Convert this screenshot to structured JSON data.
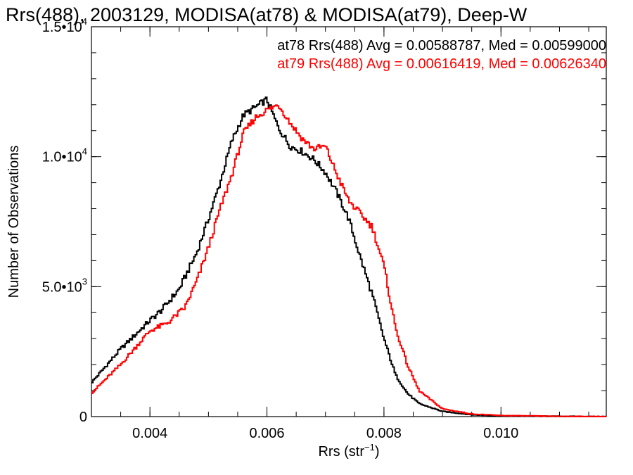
{
  "chart_data": {
    "type": "line",
    "title": "Rrs(488), 2003129, MODISA(at78) & MODISA(at79), Deep-W",
    "xlabel": "Rrs (str",
    "xlabel_sup": "−1",
    "xlabel_end": ")",
    "ylabel": "Number of Observations",
    "xlim": [
      0.003,
      0.0118
    ],
    "ylim": [
      0,
      15000
    ],
    "x_ticks": [
      {
        "value": 0.004,
        "label": "0.004"
      },
      {
        "value": 0.006,
        "label": "0.006"
      },
      {
        "value": 0.008,
        "label": "0.008"
      },
      {
        "value": 0.01,
        "label": "0.010"
      }
    ],
    "y_ticks": [
      {
        "value": 0,
        "mant": "0",
        "exp": ""
      },
      {
        "value": 5000,
        "mant": "5.0•10",
        "exp": "3"
      },
      {
        "value": 10000,
        "mant": "1.0•10",
        "exp": "4"
      },
      {
        "value": 15000,
        "mant": "1.5•10",
        "exp": "4"
      }
    ],
    "grid": false,
    "legend_position": "top-right",
    "series": [
      {
        "name": "at78",
        "label": "at78 Rrs(488) Avg = 0.00588787, Med = 0.00599000",
        "color": "#000000",
        "x": [
          0.003,
          0.0035,
          0.004,
          0.0042,
          0.0045,
          0.0048,
          0.005,
          0.0052,
          0.0054,
          0.0056,
          0.0058,
          0.006,
          0.0062,
          0.0064,
          0.0066,
          0.0068,
          0.007,
          0.0072,
          0.0074,
          0.0076,
          0.0078,
          0.008,
          0.0082,
          0.0084,
          0.0086,
          0.009,
          0.0095,
          0.01,
          0.011,
          0.0118
        ],
        "y": [
          1300,
          2600,
          3700,
          4100,
          4900,
          6300,
          7600,
          9000,
          10600,
          11600,
          11900,
          12200,
          11100,
          10400,
          10200,
          9900,
          9400,
          8600,
          7600,
          6100,
          4700,
          3000,
          1600,
          900,
          500,
          200,
          70,
          30,
          10,
          0
        ]
      },
      {
        "name": "at79",
        "label": "at79 Rrs(488) Avg = 0.00616419, Med = 0.00626340",
        "color": "#ff0000",
        "x": [
          0.003,
          0.0035,
          0.004,
          0.0043,
          0.0046,
          0.0048,
          0.005,
          0.0052,
          0.0054,
          0.0056,
          0.0058,
          0.006,
          0.0062,
          0.0064,
          0.0066,
          0.0068,
          0.007,
          0.0072,
          0.0074,
          0.0076,
          0.0078,
          0.008,
          0.0082,
          0.0084,
          0.0086,
          0.009,
          0.0095,
          0.01,
          0.011,
          0.0118
        ],
        "y": [
          900,
          2000,
          3300,
          3600,
          4200,
          5200,
          6500,
          8000,
          9300,
          10900,
          11500,
          11800,
          12000,
          11300,
          10700,
          10300,
          10400,
          9300,
          8300,
          7800,
          7300,
          5800,
          3400,
          2000,
          1000,
          300,
          100,
          40,
          10,
          0
        ]
      }
    ]
  }
}
